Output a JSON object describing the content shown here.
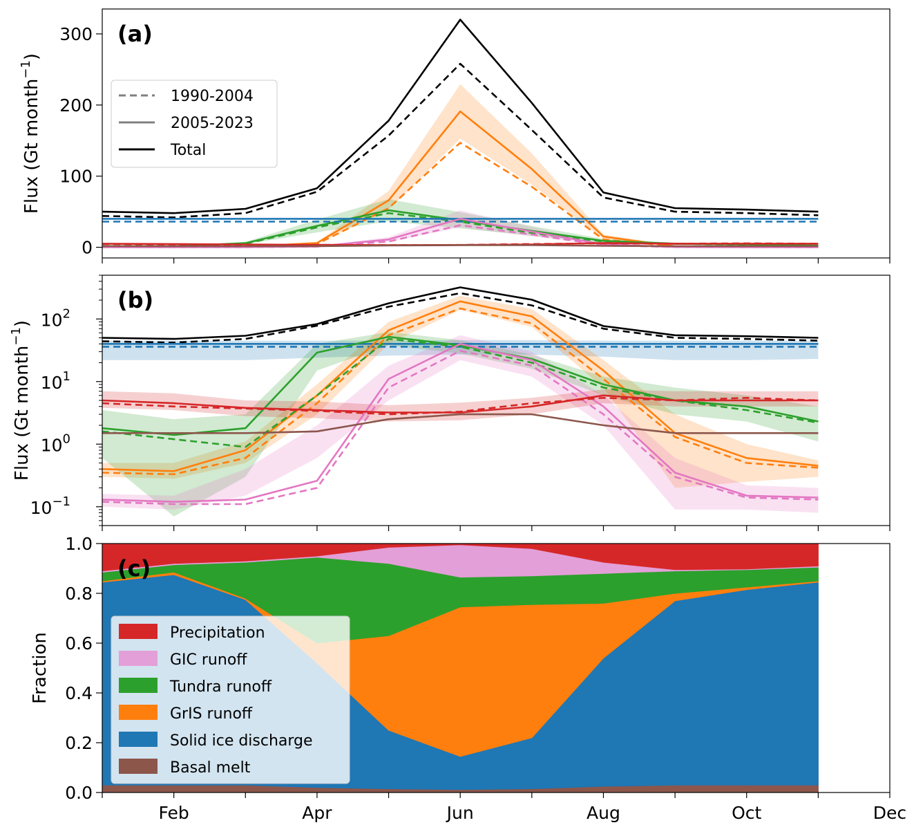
{
  "chart_data": [
    {
      "panel": "(a)",
      "type": "line",
      "ylabel": "Flux (Gt month",
      "ylabel_sup": "−1",
      "ylabel_end": ")",
      "yscale": "linear",
      "ylim": [
        -15,
        335
      ],
      "yticks": [
        {
          "v": 0,
          "label": "0"
        },
        {
          "v": 100,
          "label": "100"
        },
        {
          "v": 200,
          "label": "200"
        },
        {
          "v": 300,
          "label": "300"
        }
      ],
      "legend": {
        "position": "upper-left",
        "items": [
          {
            "label": "1990-2004",
            "style": "dashed",
            "color": "#808080"
          },
          {
            "label": "2005-2023",
            "style": "solid",
            "color": "#808080"
          },
          {
            "label": "Total",
            "style": "solid",
            "color": "#000000"
          }
        ]
      },
      "series": [
        {
          "color": "#000000",
          "style": "solid",
          "values": [
            50,
            48,
            54,
            83,
            178,
            320,
            203,
            77,
            55,
            53,
            50
          ]
        },
        {
          "color": "#000000",
          "style": "dashed",
          "values": [
            44,
            42,
            48,
            78,
            157,
            258,
            165,
            70,
            50,
            48,
            45
          ]
        },
        {
          "color": "#ff7f0e",
          "style": "solid",
          "band": 0.2,
          "values": [
            0.4,
            0.4,
            0.8,
            6,
            66,
            191,
            110,
            15,
            1.5,
            0.6,
            0.4
          ]
        },
        {
          "color": "#ff7f0e",
          "style": "dashed",
          "values": [
            0.35,
            0.33,
            0.6,
            4.5,
            55,
            147,
            85,
            11,
            1.3,
            0.5,
            0.4
          ]
        },
        {
          "color": "#2ca02c",
          "style": "solid",
          "band": 0.3,
          "values": [
            1.6,
            1.4,
            5.8,
            30,
            52,
            38,
            23,
            9,
            5,
            4,
            2.3
          ]
        },
        {
          "color": "#2ca02c",
          "style": "dashed",
          "values": [
            1.5,
            1.0,
            5,
            28,
            48,
            36,
            20,
            8,
            5,
            3.5,
            2.2
          ]
        },
        {
          "color": "#1f77b4",
          "style": "solid",
          "values": [
            40,
            40,
            40,
            40,
            40,
            40,
            40,
            40,
            40,
            40,
            40
          ]
        },
        {
          "color": "#1f77b4",
          "style": "dashed",
          "values": [
            36,
            36,
            36,
            36,
            36,
            36,
            36,
            36,
            36,
            36,
            36
          ]
        },
        {
          "color": "#e377c2",
          "style": "solid",
          "band": 0.3,
          "values": [
            0.13,
            0.12,
            0.25,
            1.1,
            11,
            40,
            22,
            4,
            0.35,
            0.15,
            0.14
          ]
        },
        {
          "color": "#e377c2",
          "style": "dashed",
          "values": [
            0.12,
            0.11,
            0.2,
            0.9,
            8,
            31,
            18,
            3,
            0.3,
            0.14,
            0.13
          ]
        },
        {
          "color": "#d62728",
          "style": "solid",
          "values": [
            5,
            4.5,
            4,
            3.5,
            3,
            3.2,
            4,
            6,
            5,
            5,
            5
          ]
        },
        {
          "color": "#d62728",
          "style": "dashed",
          "values": [
            4.5,
            4,
            3.8,
            3.4,
            3,
            3.3,
            4.5,
            5.5,
            5,
            5.5,
            5
          ]
        },
        {
          "color": "#8c564b",
          "style": "solid",
          "values": [
            1.5,
            1.5,
            1.5,
            1.6,
            2.5,
            3.0,
            3.0,
            2.0,
            1.5,
            1.5,
            1.5
          ]
        }
      ]
    },
    {
      "panel": "(b)",
      "type": "line",
      "ylabel": "Flux (Gt month",
      "ylabel_sup": "−1",
      "ylabel_end": ")",
      "yscale": "log",
      "ylim": [
        0.05,
        500
      ],
      "yticks": [
        {
          "v": 0.1,
          "base": "10",
          "exp": "−1"
        },
        {
          "v": 1,
          "base": "10",
          "exp": "0"
        },
        {
          "v": 10,
          "base": "10",
          "exp": "1"
        },
        {
          "v": 100,
          "base": "10",
          "exp": "2"
        }
      ],
      "series": [
        {
          "color": "#000000",
          "style": "solid",
          "values": [
            50,
            48,
            54,
            83,
            178,
            320,
            203,
            77,
            55,
            53,
            50
          ]
        },
        {
          "color": "#000000",
          "style": "dashed",
          "values": [
            44,
            42,
            48,
            78,
            157,
            258,
            165,
            70,
            50,
            48,
            45
          ]
        },
        {
          "color": "#1f77b4",
          "style": "solid",
          "band_lo": [
            22,
            22,
            22,
            24,
            26,
            27,
            27,
            25,
            22,
            22,
            23
          ],
          "band_hi": [
            45,
            45,
            45,
            45,
            45,
            46,
            46,
            45,
            45,
            45,
            45
          ],
          "values": [
            40,
            40,
            40,
            40,
            40,
            40,
            40,
            40,
            40,
            40,
            40
          ]
        },
        {
          "color": "#1f77b4",
          "style": "dashed",
          "values": [
            36,
            36,
            36,
            36,
            36,
            36,
            36,
            36,
            36,
            36,
            36
          ]
        },
        {
          "color": "#ff7f0e",
          "style": "solid",
          "band_lo": [
            0.3,
            0.28,
            0.5,
            3,
            40,
            140,
            75,
            8,
            0.2,
            0.25,
            0.3
          ],
          "band_hi": [
            0.5,
            0.5,
            1.1,
            9,
            90,
            235,
            145,
            22,
            3,
            1.0,
            0.55
          ],
          "values": [
            0.4,
            0.37,
            0.8,
            6,
            66,
            191,
            110,
            15,
            1.5,
            0.6,
            0.45
          ]
        },
        {
          "color": "#ff7f0e",
          "style": "dashed",
          "values": [
            0.35,
            0.33,
            0.6,
            4.5,
            55,
            147,
            85,
            11,
            1.3,
            0.5,
            0.42
          ]
        },
        {
          "color": "#2ca02c",
          "style": "solid",
          "band_lo": [
            0.6,
            0.07,
            0.3,
            15,
            38,
            28,
            16,
            6,
            3,
            2.3,
            1.1
          ],
          "band_hi": [
            3.5,
            2.5,
            3,
            40,
            62,
            46,
            27,
            12,
            8,
            6,
            4
          ],
          "values": [
            1.8,
            1.4,
            1.8,
            29,
            52,
            38,
            23,
            9,
            5,
            4,
            2.3
          ]
        },
        {
          "color": "#2ca02c",
          "style": "dashed",
          "values": [
            1.6,
            1.2,
            0.9,
            6,
            48,
            36,
            20,
            8,
            5,
            3.5,
            2.2
          ]
        },
        {
          "color": "#e377c2",
          "style": "solid",
          "band_lo": [
            0.1,
            0.09,
            0.15,
            0.6,
            5,
            22,
            12,
            2,
            0.09,
            0.09,
            0.08
          ],
          "band_hi": [
            0.16,
            0.15,
            0.4,
            2,
            18,
            55,
            30,
            6,
            0.6,
            0.22,
            0.2
          ],
          "values": [
            0.13,
            0.12,
            0.13,
            0.26,
            11,
            40,
            22,
            4,
            0.35,
            0.15,
            0.14
          ]
        },
        {
          "color": "#e377c2",
          "style": "dashed",
          "values": [
            0.12,
            0.11,
            0.11,
            0.2,
            8,
            31,
            18,
            3,
            0.3,
            0.14,
            0.13
          ]
        },
        {
          "color": "#d62728",
          "style": "solid",
          "band_lo": [
            3.8,
            3.5,
            2.8,
            2.6,
            2.3,
            2.4,
            3.0,
            4.5,
            4.0,
            4.0,
            4.0
          ],
          "band_hi": [
            7,
            6.5,
            5,
            4.8,
            4.2,
            4.6,
            5.5,
            7.5,
            7,
            7,
            7
          ],
          "values": [
            5,
            4.5,
            3.8,
            3.5,
            3.2,
            3.2,
            4,
            6,
            5,
            5,
            5
          ]
        },
        {
          "color": "#d62728",
          "style": "dashed",
          "values": [
            4.5,
            4,
            3.7,
            3.4,
            3.0,
            3.3,
            4.5,
            5.5,
            5,
            5.5,
            5
          ]
        },
        {
          "color": "#8c564b",
          "style": "solid",
          "values": [
            1.5,
            1.5,
            1.5,
            1.6,
            2.5,
            3.0,
            3.0,
            2.0,
            1.5,
            1.5,
            1.5
          ]
        }
      ]
    },
    {
      "panel": "(c)",
      "type": "area",
      "ylabel": "Fraction",
      "ylim": [
        0,
        1
      ],
      "yticks": [
        {
          "v": 0,
          "label": "0.0"
        },
        {
          "v": 0.2,
          "label": "0.2"
        },
        {
          "v": 0.4,
          "label": "0.4"
        },
        {
          "v": 0.6,
          "label": "0.6"
        },
        {
          "v": 0.8,
          "label": "0.8"
        },
        {
          "v": 1.0,
          "label": "1.0"
        }
      ],
      "stacked": true,
      "legend": {
        "position": "lower-left",
        "items": [
          {
            "label": "Precipitation",
            "color": "#d62728"
          },
          {
            "label": "GIC runoff",
            "color": "#e39fd8"
          },
          {
            "label": "Tundra runoff",
            "color": "#2ca02c"
          },
          {
            "label": "GrIS runoff",
            "color": "#ff7f0e"
          },
          {
            "label": "Solid ice discharge",
            "color": "#1f77b4"
          },
          {
            "label": "Basal melt",
            "color": "#8c564b"
          }
        ]
      },
      "boundaries": [
        {
          "name": "Basal melt",
          "color": "#8c564b",
          "top": [
            0.03,
            0.03,
            0.03,
            0.02,
            0.015,
            0.012,
            0.015,
            0.025,
            0.03,
            0.03,
            0.03
          ]
        },
        {
          "name": "Solid ice discharge",
          "color": "#1f77b4",
          "top": [
            0.845,
            0.875,
            0.775,
            0.52,
            0.25,
            0.145,
            0.22,
            0.54,
            0.77,
            0.815,
            0.845
          ]
        },
        {
          "name": "GrIS runoff",
          "color": "#ff7f0e",
          "top": [
            0.85,
            0.885,
            0.78,
            0.6,
            0.63,
            0.745,
            0.755,
            0.76,
            0.8,
            0.825,
            0.85
          ]
        },
        {
          "name": "Tundra runoff",
          "color": "#2ca02c",
          "top": [
            0.885,
            0.915,
            0.925,
            0.945,
            0.92,
            0.865,
            0.87,
            0.88,
            0.89,
            0.895,
            0.905
          ]
        },
        {
          "name": "GIC runoff",
          "color": "#e39fd8",
          "top": [
            0.89,
            0.92,
            0.93,
            0.95,
            0.985,
            0.995,
            0.98,
            0.925,
            0.895,
            0.898,
            0.91
          ]
        },
        {
          "name": "Precipitation",
          "color": "#d62728",
          "top": [
            1,
            1,
            1,
            1,
            1,
            1,
            1,
            1,
            1,
            1,
            1
          ]
        }
      ]
    }
  ],
  "xaxis": {
    "range": [
      1,
      12
    ],
    "tick_months": [
      1,
      2,
      3,
      4,
      5,
      6,
      7,
      8,
      9,
      10,
      11,
      12
    ],
    "labeled_ticks": [
      {
        "month": 2,
        "label": "Feb"
      },
      {
        "month": 4,
        "label": "Apr"
      },
      {
        "month": 6,
        "label": "Jun"
      },
      {
        "month": 8,
        "label": "Aug"
      },
      {
        "month": 10,
        "label": "Oct"
      },
      {
        "month": 12,
        "label": "Dec"
      }
    ]
  }
}
